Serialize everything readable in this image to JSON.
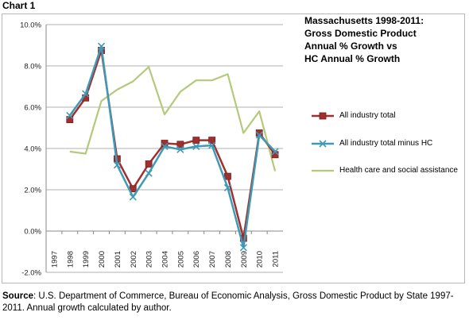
{
  "label": "Chart 1",
  "chart_data": {
    "type": "line",
    "title": [
      "Massachusetts 1998-2011:",
      "Gross Domestic Product",
      "Annual % Growth vs",
      "HC Annual % Growth"
    ],
    "x": [
      "1997",
      "1998",
      "1999",
      "2000",
      "2001",
      "2002",
      "2003",
      "2004",
      "2005",
      "2006",
      "2007",
      "2008",
      "2009",
      "2010",
      "2011"
    ],
    "yticks": [
      "10.0%",
      "8.0%",
      "6.0%",
      "4.0%",
      "2.0%",
      "0.0%",
      "-2.0%"
    ],
    "ylim": [
      -2,
      10
    ],
    "grid": true,
    "legend_position": "right",
    "series": [
      {
        "name": "All industry total",
        "color": "#a0302f",
        "marker": "square",
        "values": [
          null,
          5.4,
          6.45,
          8.75,
          3.5,
          2.05,
          3.25,
          4.25,
          4.2,
          4.4,
          4.4,
          2.65,
          -0.35,
          4.75,
          3.7
        ]
      },
      {
        "name": "All industry total minus HC",
        "color": "#3f9ab5",
        "marker": "x",
        "values": [
          null,
          5.6,
          6.65,
          8.95,
          3.2,
          1.65,
          2.8,
          4.1,
          3.95,
          4.1,
          4.15,
          2.1,
          -0.8,
          4.65,
          3.85
        ]
      },
      {
        "name": "Health care and social assistance",
        "color": "#b4ca7a",
        "marker": "none",
        "values": [
          null,
          3.85,
          3.75,
          6.3,
          6.85,
          7.25,
          7.95,
          5.65,
          6.75,
          7.3,
          7.3,
          7.6,
          4.75,
          5.8,
          2.9
        ]
      }
    ]
  },
  "source": {
    "label": "Source",
    "text": ": U.S. Department of Commerce, Bureau of Economic Analysis, Gross Domestic Product by State 1997-2011. Annual growth calculated by author."
  }
}
